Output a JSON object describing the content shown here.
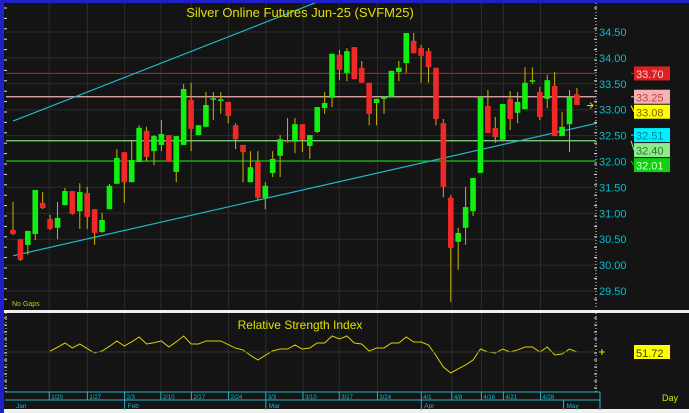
{
  "chart_data": [
    {
      "type": "candlestick",
      "title": "Silver Online Futures Jun-25 (SVFM25)",
      "note": "No Gaps",
      "y_ticks": [
        "34.50",
        "34.00",
        "33.50",
        "33.00",
        "32.50",
        "32.00",
        "31.50",
        "31.00",
        "30.50",
        "30.00",
        "29.50"
      ],
      "ylim": [
        29.2,
        35.0
      ],
      "grid": true,
      "candles": [
        [
          30.68,
          31.22,
          30.58,
          30.6
        ],
        [
          30.5,
          30.5,
          30.08,
          30.1
        ],
        [
          30.39,
          30.66,
          30.2,
          30.66
        ],
        [
          30.6,
          31.45,
          30.48,
          31.45
        ],
        [
          31.2,
          31.41,
          31.08,
          31.1
        ],
        [
          30.89,
          30.97,
          30.68,
          30.7
        ],
        [
          30.72,
          31.22,
          30.5,
          30.91
        ],
        [
          31.16,
          31.49,
          31.15,
          31.43
        ],
        [
          31.43,
          31.43,
          30.97,
          30.99
        ],
        [
          31.04,
          31.58,
          30.7,
          31.41
        ],
        [
          31.39,
          31.51,
          30.7,
          30.93
        ],
        [
          31.08,
          31.08,
          30.39,
          30.62
        ],
        [
          30.64,
          31.01,
          30.62,
          30.87
        ],
        [
          31.08,
          31.57,
          31.08,
          31.53
        ],
        [
          31.57,
          32.24,
          31.57,
          32.07
        ],
        [
          32.18,
          32.18,
          31.2,
          31.6
        ],
        [
          31.6,
          32.4,
          31.6,
          32.03
        ],
        [
          31.99,
          32.7,
          31.99,
          32.65
        ],
        [
          32.59,
          32.67,
          32.01,
          32.09
        ],
        [
          32.2,
          32.51,
          31.93,
          32.49
        ],
        [
          32.32,
          32.8,
          32.2,
          32.53
        ],
        [
          32.51,
          32.51,
          31.99,
          31.99
        ],
        [
          31.8,
          32.49,
          31.6,
          32.49
        ],
        [
          32.32,
          33.5,
          32.32,
          33.4
        ],
        [
          33.19,
          33.52,
          32.2,
          32.63
        ],
        [
          32.51,
          32.7,
          32.51,
          32.7
        ],
        [
          32.67,
          33.34,
          32.67,
          33.09
        ],
        [
          33.19,
          33.34,
          32.8,
          33.22
        ],
        [
          33.17,
          33.34,
          32.92,
          33.2
        ],
        [
          33.15,
          33.15,
          32.74,
          32.88
        ],
        [
          32.7,
          32.74,
          32.24,
          32.43
        ],
        [
          32.32,
          32.32,
          31.6,
          32.18
        ],
        [
          31.6,
          32.2,
          31.6,
          31.89
        ],
        [
          31.99,
          32.2,
          31.24,
          31.3
        ],
        [
          31.3,
          31.6,
          31.08,
          31.53
        ],
        [
          31.78,
          32.2,
          31.7,
          32.05
        ],
        [
          32.11,
          32.51,
          31.7,
          32.43
        ],
        [
          32.4,
          32.84,
          32.36,
          32.38
        ],
        [
          32.38,
          32.84,
          32.16,
          32.72
        ],
        [
          32.72,
          32.72,
          32.18,
          32.42
        ],
        [
          32.3,
          32.51,
          32.05,
          32.51
        ],
        [
          32.57,
          33.05,
          32.55,
          33.05
        ],
        [
          33.03,
          33.34,
          32.92,
          33.13
        ],
        [
          33.23,
          34.08,
          33.05,
          34.08
        ],
        [
          34.06,
          34.15,
          33.57,
          33.77
        ],
        [
          33.71,
          34.19,
          33.55,
          34.13
        ],
        [
          34.21,
          34.21,
          33.59,
          33.59
        ],
        [
          33.81,
          33.94,
          33.52,
          33.52
        ],
        [
          33.52,
          33.52,
          32.7,
          32.92
        ],
        [
          33.13,
          33.21,
          32.7,
          33.21
        ],
        [
          33.21,
          33.25,
          32.92,
          33.25
        ],
        [
          33.25,
          33.75,
          33.25,
          33.75
        ],
        [
          33.73,
          33.94,
          33.55,
          33.81
        ],
        [
          33.9,
          34.48,
          33.71,
          34.48
        ],
        [
          34.33,
          34.48,
          34.09,
          34.09
        ],
        [
          34.19,
          34.25,
          33.52,
          34.04
        ],
        [
          34.13,
          34.19,
          33.52,
          33.82
        ],
        [
          33.81,
          33.81,
          32.7,
          32.82
        ],
        [
          32.74,
          32.82,
          31.31,
          31.51
        ],
        [
          31.3,
          31.35,
          29.29,
          30.33
        ],
        [
          30.45,
          30.72,
          29.91,
          30.62
        ],
        [
          30.72,
          31.51,
          30.39,
          31.12
        ],
        [
          31.04,
          31.68,
          30.95,
          31.68
        ],
        [
          31.78,
          33.25,
          31.78,
          33.25
        ],
        [
          33.07,
          33.38,
          32.55,
          32.55
        ],
        [
          32.65,
          32.86,
          32.36,
          32.47
        ],
        [
          32.42,
          33.11,
          32.42,
          33.11
        ],
        [
          33.21,
          33.36,
          32.61,
          32.82
        ],
        [
          32.94,
          33.34,
          32.74,
          33.15
        ],
        [
          33.01,
          33.82,
          33.01,
          33.52
        ],
        [
          33.54,
          33.82,
          33.5,
          33.57
        ],
        [
          33.34,
          33.44,
          32.8,
          32.86
        ],
        [
          33.21,
          33.67,
          33.03,
          33.57
        ],
        [
          33.46,
          33.73,
          32.49,
          32.49
        ],
        [
          32.49,
          32.96,
          32.49,
          32.67
        ],
        [
          32.72,
          33.38,
          32.18,
          33.25
        ],
        [
          33.3,
          33.42,
          33.09,
          33.09
        ]
      ],
      "horizontal_lines": [
        {
          "value": 33.7,
          "label": "33.70",
          "color": "#c01818",
          "label_bg": "#e02020",
          "label_fg": "#f0d0d0"
        },
        {
          "value": 33.25,
          "label": "33.25",
          "color": "#f0b0b0",
          "label_bg": "#f4b4b4",
          "label_fg": "#c04040"
        },
        {
          "value": 32.4,
          "label": "32.40",
          "color": "#80e080",
          "label_bg": "#90e890",
          "label_fg": "#208020"
        },
        {
          "value": 32.01,
          "label": "32.01",
          "color": "#10c010",
          "label_bg": "#10d010",
          "label_fg": "#d0ffd0"
        }
      ],
      "price_labels": [
        {
          "value": 33.08,
          "label": "33.08",
          "label_bg": "#ffff00",
          "label_fg": "#806000"
        },
        {
          "value": 32.51,
          "label": "32.51",
          "label_bg": "#00f0ff",
          "label_fg": "#008090"
        }
      ],
      "trend_lines": [
        {
          "from": [
            0,
            32.78
          ],
          "to": [
            61,
            36.2
          ],
          "color": "#20b8c8"
        },
        {
          "from": [
            0,
            30.18
          ],
          "to": [
            79,
            32.75
          ],
          "color": "#20b8c8"
        }
      ],
      "colors": {
        "up": "#10f010",
        "down": "#f02828",
        "wick": "#c8b400",
        "axis_text": "#00c0d0",
        "title": "#e0e000",
        "background": "#141414"
      }
    },
    {
      "type": "line",
      "title": "Relative Strength Index",
      "last_value_label": "51.72",
      "start_candle": 5,
      "values": [
        52.8,
        57,
        61.7,
        56.2,
        60.6,
        55.5,
        50.6,
        52.8,
        58,
        64,
        58.4,
        63,
        68.4,
        60.6,
        62,
        64,
        57.3,
        63,
        69.5,
        60.6,
        60.6,
        64,
        64,
        64,
        60,
        56,
        54,
        48,
        42.8,
        48,
        53,
        55,
        55,
        59.5,
        55,
        56.2,
        61.7,
        61.7,
        69.5,
        66.2,
        69.5,
        61.7,
        60.6,
        52.8,
        56.2,
        56.2,
        61.7,
        61.7,
        68.4,
        62.8,
        62.8,
        59.5,
        48,
        35,
        28.4,
        33,
        37.3,
        42.8,
        55,
        51.7,
        50.6,
        55,
        51.7,
        54,
        57.3,
        57.3,
        51.7,
        57.3,
        48.4,
        49.5,
        55,
        51.72
      ],
      "color": "#d8d000"
    }
  ],
  "x_axis": {
    "days": [
      "1/20",
      "1/27",
      "2/3",
      "2/10",
      "2/17",
      "2/24",
      "3/3",
      "3/10",
      "3/17",
      "3/24",
      "4/1",
      "4/8",
      "4/16",
      "4/21",
      "4/28"
    ],
    "months": [
      "Jan",
      "Feb",
      "Mar",
      "Apr",
      "May"
    ],
    "period": "Day"
  }
}
